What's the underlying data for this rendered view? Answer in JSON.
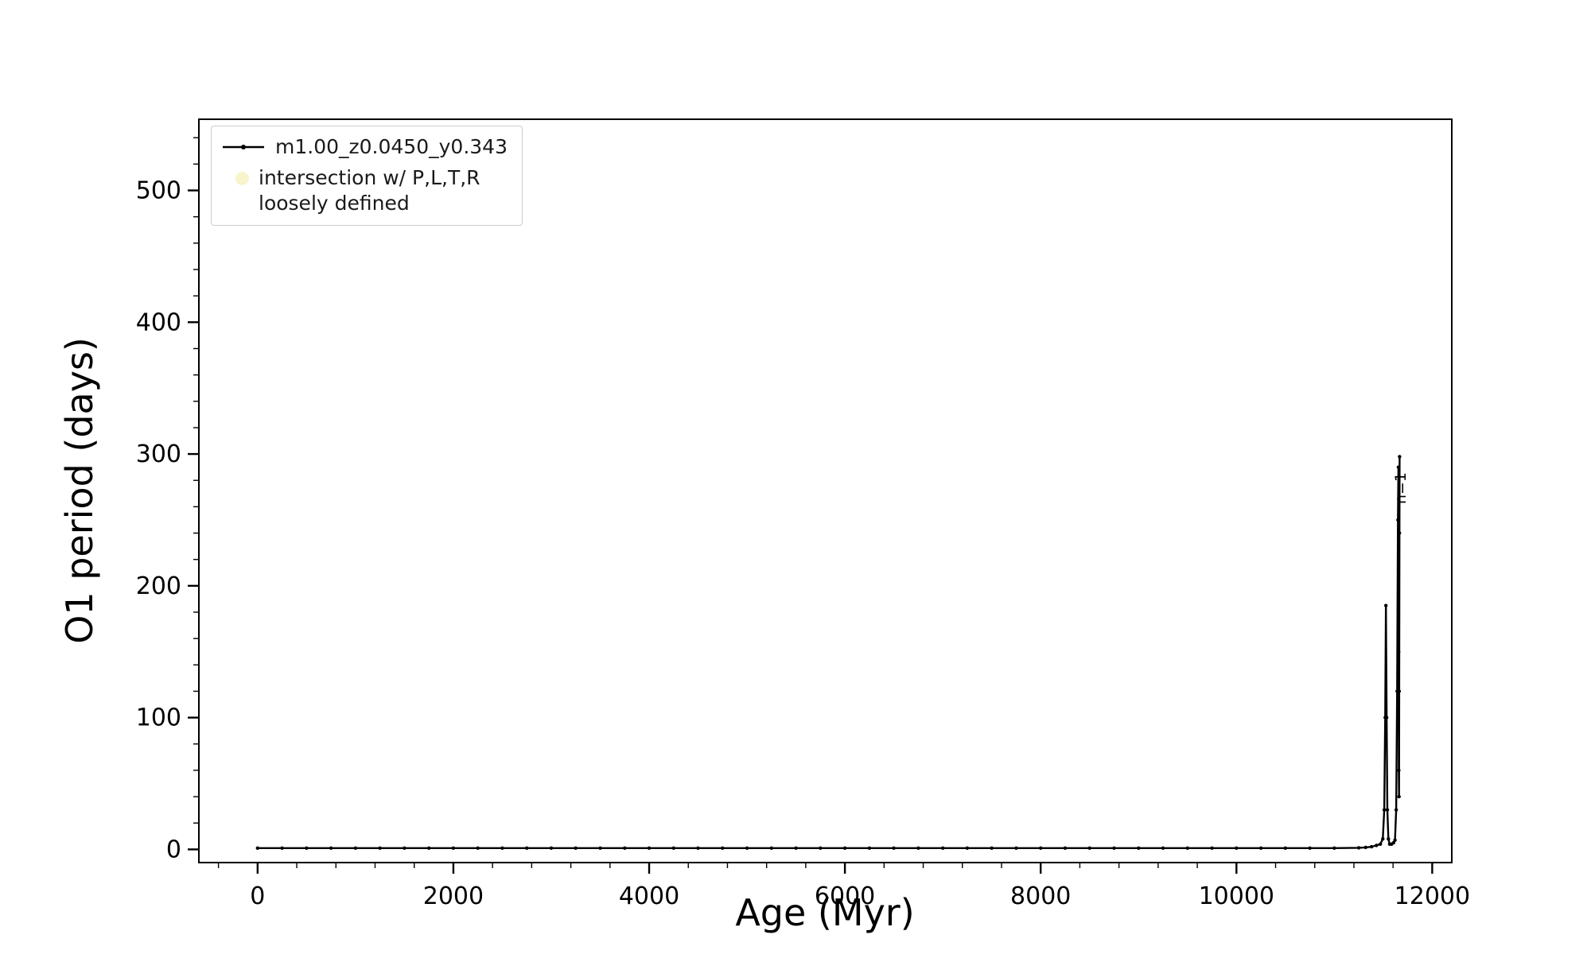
{
  "chart_data": {
    "type": "line",
    "title": "",
    "xlabel": "Age (Myr)",
    "ylabel": "O1 period (days)",
    "xlim": [
      -600,
      12200
    ],
    "ylim": [
      -10,
      554
    ],
    "xticks": [
      0,
      2000,
      4000,
      6000,
      8000,
      10000,
      12000
    ],
    "yticks": [
      0,
      100,
      200,
      300,
      400,
      500
    ],
    "x_minor_step": 400,
    "y_minor_step": 20,
    "grid": false,
    "legend_position": "upper-left",
    "annotation": {
      "text": "n=1",
      "x": 11730,
      "y": 262,
      "rotation": -90
    },
    "legend": {
      "entries": [
        {
          "label": "m1.00_z0.0450_y0.343",
          "marker": "line-dot",
          "color": "#000000"
        },
        {
          "label": "intersection w/ P,L,T,R\nloosely defined",
          "marker": "circle",
          "color": "#f0e68c"
        }
      ]
    },
    "series": [
      {
        "name": "m1.00_z0.0450_y0.343",
        "color": "#000000",
        "points": [
          [
            0,
            1
          ],
          [
            250,
            1
          ],
          [
            500,
            1
          ],
          [
            750,
            1
          ],
          [
            1000,
            1
          ],
          [
            1250,
            1
          ],
          [
            1500,
            1
          ],
          [
            1750,
            1
          ],
          [
            2000,
            1
          ],
          [
            2250,
            1
          ],
          [
            2500,
            1
          ],
          [
            2750,
            1
          ],
          [
            3000,
            1
          ],
          [
            3250,
            1
          ],
          [
            3500,
            1
          ],
          [
            3750,
            1
          ],
          [
            4000,
            1
          ],
          [
            4250,
            1
          ],
          [
            4500,
            1
          ],
          [
            4750,
            1
          ],
          [
            5000,
            1
          ],
          [
            5250,
            1
          ],
          [
            5500,
            1
          ],
          [
            5750,
            1
          ],
          [
            6000,
            1
          ],
          [
            6250,
            1
          ],
          [
            6500,
            1
          ],
          [
            6750,
            1
          ],
          [
            7000,
            1
          ],
          [
            7250,
            1
          ],
          [
            7500,
            1
          ],
          [
            7750,
            1
          ],
          [
            8000,
            1
          ],
          [
            8250,
            1
          ],
          [
            8500,
            1
          ],
          [
            8750,
            1
          ],
          [
            9000,
            1
          ],
          [
            9250,
            1
          ],
          [
            9500,
            1
          ],
          [
            9750,
            1
          ],
          [
            10000,
            1
          ],
          [
            10250,
            1
          ],
          [
            10500,
            1
          ],
          [
            10750,
            1
          ],
          [
            11000,
            1
          ],
          [
            11250,
            1.2
          ],
          [
            11320,
            1.5
          ],
          [
            11380,
            2
          ],
          [
            11430,
            3
          ],
          [
            11470,
            4
          ],
          [
            11495,
            8
          ],
          [
            11510,
            30
          ],
          [
            11520,
            100
          ],
          [
            11527,
            185
          ],
          [
            11534,
            100
          ],
          [
            11542,
            30
          ],
          [
            11552,
            8
          ],
          [
            11565,
            4
          ],
          [
            11585,
            4
          ],
          [
            11605,
            5
          ],
          [
            11620,
            7
          ],
          [
            11632,
            30
          ],
          [
            11642,
            120
          ],
          [
            11650,
            250
          ],
          [
            11655,
            290
          ],
          [
            11657,
            150
          ],
          [
            11659,
            60
          ],
          [
            11661,
            40
          ],
          [
            11663,
            120
          ],
          [
            11665,
            240
          ],
          [
            11667,
            298
          ]
        ]
      }
    ]
  }
}
